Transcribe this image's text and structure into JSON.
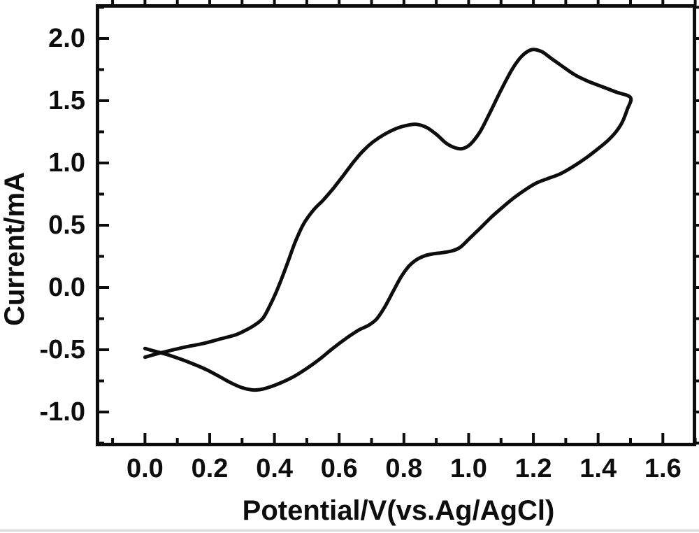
{
  "chart_data": {
    "type": "line",
    "title": "",
    "xlabel": "Potential/V(vs.Ag/AgCl)",
    "ylabel": "Current/mA",
    "xlim": [
      -0.152,
      1.703
    ],
    "ylim": [
      -1.275,
      2.275
    ],
    "grid": false,
    "legend": "none",
    "x_major_ticks": [
      0.0,
      0.2,
      0.4,
      0.6,
      0.8,
      1.0,
      1.2,
      1.4,
      1.6
    ],
    "x_major_labels": [
      "0.0",
      "0.2",
      "0.4",
      "0.6",
      "0.8",
      "1.0",
      "1.2",
      "1.4",
      "1.6"
    ],
    "x_minor_ticks": [
      -0.1,
      0.1,
      0.3,
      0.5,
      0.7,
      0.9,
      1.1,
      1.3,
      1.5,
      1.7
    ],
    "y_major_ticks": [
      -1.0,
      -0.5,
      0.0,
      0.5,
      1.0,
      1.5,
      2.0
    ],
    "y_major_labels": [
      "-1.0",
      "-0.5",
      "0.0",
      "0.5",
      "1.0",
      "1.5",
      "2.0"
    ],
    "y_minor_ticks": [
      -1.25,
      -0.75,
      -0.25,
      0.25,
      0.75,
      1.25,
      1.75,
      2.25
    ],
    "colors": {
      "curve": "#0d0d0d",
      "axis": "#0d0d0d",
      "text": "#0d0d0d",
      "background": "#ffffff"
    },
    "series": [
      {
        "name": "forward-anodic-scan",
        "points": [
          [
            0.0,
            -0.56
          ],
          [
            0.04,
            -0.53
          ],
          [
            0.08,
            -0.505
          ],
          [
            0.13,
            -0.475
          ],
          [
            0.18,
            -0.45
          ],
          [
            0.23,
            -0.415
          ],
          [
            0.28,
            -0.38
          ],
          [
            0.31,
            -0.345
          ],
          [
            0.34,
            -0.3
          ],
          [
            0.365,
            -0.245
          ],
          [
            0.385,
            -0.15
          ],
          [
            0.405,
            -0.04
          ],
          [
            0.425,
            0.09
          ],
          [
            0.445,
            0.23
          ],
          [
            0.465,
            0.37
          ],
          [
            0.49,
            0.51
          ],
          [
            0.52,
            0.62
          ],
          [
            0.55,
            0.7
          ],
          [
            0.58,
            0.79
          ],
          [
            0.61,
            0.89
          ],
          [
            0.645,
            1.01
          ],
          [
            0.675,
            1.1
          ],
          [
            0.705,
            1.17
          ],
          [
            0.74,
            1.23
          ],
          [
            0.78,
            1.28
          ],
          [
            0.815,
            1.305
          ],
          [
            0.84,
            1.31
          ],
          [
            0.87,
            1.285
          ],
          [
            0.9,
            1.23
          ],
          [
            0.93,
            1.16
          ],
          [
            0.955,
            1.125
          ],
          [
            0.98,
            1.115
          ],
          [
            1.005,
            1.15
          ],
          [
            1.035,
            1.25
          ],
          [
            1.065,
            1.4
          ],
          [
            1.1,
            1.585
          ],
          [
            1.135,
            1.755
          ],
          [
            1.165,
            1.86
          ],
          [
            1.195,
            1.91
          ],
          [
            1.225,
            1.895
          ],
          [
            1.255,
            1.84
          ],
          [
            1.29,
            1.775
          ],
          [
            1.33,
            1.705
          ],
          [
            1.37,
            1.655
          ],
          [
            1.41,
            1.615
          ],
          [
            1.455,
            1.57
          ],
          [
            1.5,
            1.525
          ]
        ]
      },
      {
        "name": "reverse-cathodic-scan",
        "points": [
          [
            1.5,
            1.525
          ],
          [
            1.49,
            1.43
          ],
          [
            1.475,
            1.33
          ],
          [
            1.455,
            1.25
          ],
          [
            1.43,
            1.18
          ],
          [
            1.4,
            1.115
          ],
          [
            1.365,
            1.045
          ],
          [
            1.325,
            0.975
          ],
          [
            1.285,
            0.915
          ],
          [
            1.245,
            0.875
          ],
          [
            1.21,
            0.84
          ],
          [
            1.175,
            0.785
          ],
          [
            1.14,
            0.72
          ],
          [
            1.105,
            0.645
          ],
          [
            1.07,
            0.565
          ],
          [
            1.035,
            0.475
          ],
          [
            1.005,
            0.4
          ],
          [
            0.975,
            0.325
          ],
          [
            0.95,
            0.295
          ],
          [
            0.92,
            0.28
          ],
          [
            0.89,
            0.27
          ],
          [
            0.865,
            0.255
          ],
          [
            0.84,
            0.225
          ],
          [
            0.815,
            0.17
          ],
          [
            0.79,
            0.08
          ],
          [
            0.765,
            -0.04
          ],
          [
            0.74,
            -0.16
          ],
          [
            0.715,
            -0.255
          ],
          [
            0.69,
            -0.305
          ],
          [
            0.665,
            -0.335
          ],
          [
            0.64,
            -0.375
          ],
          [
            0.61,
            -0.43
          ],
          [
            0.575,
            -0.5
          ],
          [
            0.54,
            -0.575
          ],
          [
            0.5,
            -0.65
          ],
          [
            0.46,
            -0.715
          ],
          [
            0.42,
            -0.765
          ],
          [
            0.385,
            -0.8
          ],
          [
            0.355,
            -0.82
          ],
          [
            0.33,
            -0.822
          ],
          [
            0.3,
            -0.805
          ],
          [
            0.265,
            -0.765
          ],
          [
            0.23,
            -0.715
          ],
          [
            0.19,
            -0.66
          ],
          [
            0.15,
            -0.615
          ],
          [
            0.11,
            -0.575
          ],
          [
            0.07,
            -0.54
          ],
          [
            0.035,
            -0.515
          ],
          [
            0.0,
            -0.49
          ]
        ]
      }
    ]
  }
}
